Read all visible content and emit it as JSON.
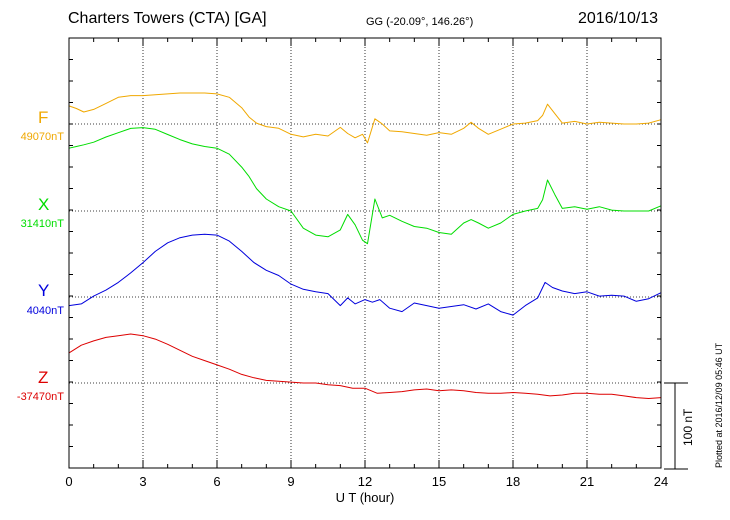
{
  "header": {
    "station": "Charters Towers (CTA)  [GA]",
    "coords": "GG (-20.09°, 146.26°)",
    "date": "2016/10/13"
  },
  "footer": {
    "plotted": "Plotted at 2016/12/09 05:46 UT",
    "scale_label": "100 nT"
  },
  "chart_data": {
    "type": "line",
    "xlabel": "U T (hour)",
    "xlim": [
      0,
      24
    ],
    "x_ticks": [
      0,
      3,
      6,
      9,
      12,
      15,
      18,
      21,
      24
    ],
    "x_tick_labels": [
      "0",
      "3",
      "6",
      "9",
      "12",
      "15",
      "18",
      "21",
      "24"
    ],
    "grid": true,
    "scale_bar_nT": 100,
    "series": [
      {
        "name": "F",
        "baseline_label": "49070nT",
        "color": "#f0a800",
        "baseline_offset_nT": 0,
        "x": [
          0,
          0.3,
          0.6,
          1.0,
          1.5,
          2.0,
          2.5,
          3.0,
          3.5,
          4.0,
          4.5,
          5.0,
          5.5,
          6.0,
          6.5,
          7.0,
          7.3,
          7.6,
          8.0,
          8.5,
          9.0,
          9.5,
          10.0,
          10.5,
          11.0,
          11.3,
          11.6,
          11.9,
          12.1,
          12.4,
          12.7,
          13.0,
          13.5,
          14.0,
          14.5,
          15.0,
          15.5,
          16.0,
          16.3,
          16.6,
          17.0,
          17.5,
          18.0,
          18.5,
          19.0,
          19.2,
          19.4,
          19.7,
          20.0,
          20.5,
          21.0,
          21.5,
          22.0,
          22.5,
          23.0,
          23.5,
          24.0
        ],
        "y": [
          21,
          18,
          14,
          17,
          24,
          31,
          33,
          33,
          34,
          35,
          36,
          36,
          36,
          35,
          31,
          19,
          8,
          1,
          -3,
          -5,
          -12,
          -15,
          -12,
          -14,
          -4,
          -11,
          -16,
          -12,
          -22,
          6,
          0,
          -8,
          -9,
          -11,
          -13,
          -10,
          -12,
          -5,
          2,
          -5,
          -12,
          -6,
          0,
          1,
          4,
          10,
          23,
          12,
          1,
          3,
          0,
          2,
          1,
          0,
          0,
          1,
          5
        ]
      },
      {
        "name": "X",
        "baseline_label": "31410nT",
        "color": "#00dd00",
        "baseline_offset_nT": 0,
        "x": [
          0,
          0.3,
          0.6,
          1.0,
          1.5,
          2.0,
          2.5,
          3.0,
          3.5,
          4.0,
          4.5,
          5.0,
          5.5,
          6.0,
          6.5,
          7.0,
          7.3,
          7.6,
          8.0,
          8.5,
          9.0,
          9.5,
          10.0,
          10.5,
          11.0,
          11.3,
          11.6,
          11.9,
          12.1,
          12.4,
          12.7,
          13.0,
          13.5,
          14.0,
          14.5,
          15.0,
          15.5,
          16.0,
          16.3,
          16.6,
          17.0,
          17.5,
          18.0,
          18.5,
          19.0,
          19.2,
          19.4,
          19.7,
          20.0,
          20.5,
          21.0,
          21.5,
          22.0,
          22.5,
          23.0,
          23.5,
          24.0
        ],
        "y": [
          73,
          75,
          77,
          80,
          86,
          91,
          96,
          97,
          95,
          89,
          83,
          78,
          75,
          73,
          66,
          51,
          40,
          26,
          14,
          5,
          0,
          -20,
          -28,
          -30,
          -22,
          -4,
          -16,
          -34,
          -38,
          14,
          -8,
          -5,
          -12,
          -18,
          -20,
          -25,
          -27,
          -14,
          -10,
          -14,
          -20,
          -14,
          -4,
          0,
          3,
          13,
          36,
          19,
          3,
          5,
          2,
          5,
          1,
          0,
          0,
          0,
          6
        ]
      },
      {
        "name": "Y",
        "baseline_label": "4040nT",
        "color": "#0000dd",
        "baseline_offset_nT": 0,
        "x": [
          0,
          0.5,
          1.0,
          1.5,
          2.0,
          2.5,
          3.0,
          3.5,
          4.0,
          4.5,
          5.0,
          5.5,
          6.0,
          6.5,
          7.0,
          7.5,
          8.0,
          8.5,
          9.0,
          9.5,
          10.0,
          10.5,
          11.0,
          11.3,
          11.6,
          12.0,
          12.3,
          12.6,
          13.0,
          13.5,
          14.0,
          14.5,
          15.0,
          15.5,
          16.0,
          16.5,
          17.0,
          17.5,
          18.0,
          18.5,
          19.0,
          19.3,
          19.6,
          20.0,
          20.5,
          21.0,
          21.5,
          22.0,
          22.5,
          23.0,
          23.5,
          24.0
        ],
        "y": [
          -10,
          -8,
          1,
          8,
          17,
          28,
          40,
          53,
          63,
          69,
          72,
          73,
          72,
          65,
          53,
          40,
          31,
          25,
          15,
          9,
          6,
          4,
          -10,
          -1,
          -8,
          -3,
          -6,
          -3,
          -13,
          -17,
          -7,
          -10,
          -13,
          -11,
          -9,
          -14,
          -8,
          -17,
          -21,
          -10,
          -1,
          17,
          11,
          7,
          4,
          6,
          1,
          2,
          1,
          -5,
          -2,
          5
        ]
      },
      {
        "name": "Z",
        "baseline_label": "-37470nT",
        "color": "#dd0000",
        "baseline_offset_nT": 0,
        "x": [
          0,
          0.5,
          1.0,
          1.5,
          2.0,
          2.5,
          3.0,
          3.5,
          4.0,
          4.5,
          5.0,
          5.5,
          6.0,
          6.5,
          7.0,
          7.5,
          8.0,
          8.5,
          9.0,
          9.5,
          10.0,
          10.5,
          11.0,
          11.5,
          12.0,
          12.5,
          13.0,
          13.5,
          14.0,
          14.5,
          15.0,
          15.5,
          16.0,
          16.5,
          17.0,
          17.5,
          18.0,
          18.5,
          19.0,
          19.5,
          20.0,
          20.5,
          21.0,
          21.5,
          22.0,
          22.5,
          23.0,
          23.5,
          24.0
        ],
        "y": [
          35,
          44,
          49,
          53,
          55,
          57,
          55,
          51,
          45,
          38,
          31,
          26,
          21,
          16,
          10,
          6,
          3,
          2,
          1,
          0,
          0,
          -2,
          -3,
          -6,
          -6,
          -12,
          -11,
          -10,
          -8,
          -7,
          -9,
          -8,
          -9,
          -11,
          -12,
          -12,
          -11,
          -12,
          -13,
          -15,
          -14,
          -12,
          -12,
          -13,
          -13,
          -15,
          -17,
          -18,
          -17
        ]
      }
    ]
  }
}
